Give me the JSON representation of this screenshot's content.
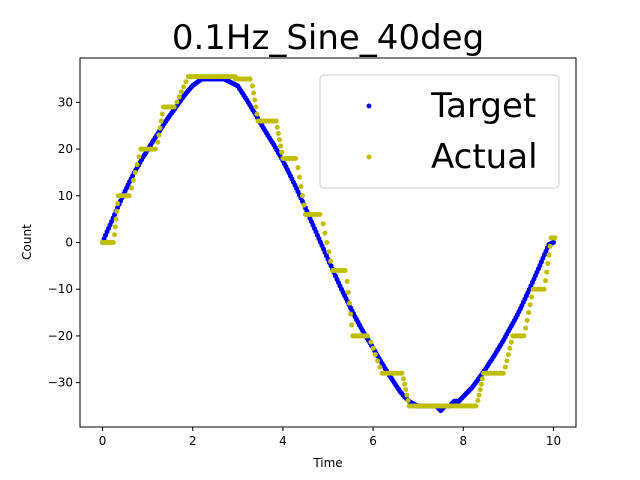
{
  "chart_data": {
    "type": "scatter",
    "title": "0.1Hz_Sine_40deg",
    "xlabel": "Time",
    "ylabel": "Count",
    "xlim": [
      -0.5,
      10.5
    ],
    "ylim": [
      -39.5,
      39.5
    ],
    "xticks": [
      0,
      2,
      4,
      6,
      8,
      10
    ],
    "xtick_labels": [
      "0",
      "2",
      "4",
      "6",
      "8",
      "10"
    ],
    "yticks": [
      -30,
      -20,
      -10,
      0,
      10,
      20,
      30
    ],
    "ytick_labels": [
      "−30",
      "−20",
      "−10",
      "0",
      "10",
      "20",
      "30"
    ],
    "grid": false,
    "legend_position": "top-right",
    "series": [
      {
        "name": "Target",
        "color": "#0000ff",
        "x": [
          0.0,
          0.1,
          0.2,
          0.3,
          0.4,
          0.5,
          0.6,
          0.7,
          0.8,
          0.9,
          1.0,
          1.1,
          1.2,
          1.3,
          1.4,
          1.5,
          1.6,
          1.7,
          1.8,
          1.9,
          2.0,
          2.1,
          2.2,
          2.3,
          2.4,
          2.5,
          2.6,
          2.7,
          2.8,
          2.9,
          3.0,
          3.1,
          3.2,
          3.3,
          3.4,
          3.5,
          3.6,
          3.7,
          3.8,
          3.9,
          4.0,
          4.1,
          4.2,
          4.3,
          4.4,
          4.5,
          4.6,
          4.7,
          4.8,
          4.9,
          5.0,
          5.1,
          5.2,
          5.3,
          5.4,
          5.5,
          5.6,
          5.7,
          5.8,
          5.9,
          6.0,
          6.1,
          6.2,
          6.3,
          6.4,
          6.5,
          6.6,
          6.7,
          6.8,
          6.9,
          7.0,
          7.1,
          7.2,
          7.3,
          7.4,
          7.5,
          7.6,
          7.7,
          7.8,
          7.9,
          8.0,
          8.1,
          8.2,
          8.3,
          8.4,
          8.5,
          8.6,
          8.7,
          8.8,
          8.9,
          9.0,
          9.1,
          9.2,
          9.3,
          9.4,
          9.5,
          9.6,
          9.7,
          9.8,
          9.9,
          10.0
        ],
        "y": [
          0.0,
          2.3,
          4.5,
          6.7,
          8.9,
          11.0,
          13.0,
          14.9,
          16.6,
          18.3,
          19.8,
          21.4,
          22.9,
          24.4,
          25.9,
          27.3,
          28.6,
          30.0,
          31.3,
          32.5,
          33.6,
          34.3,
          35.0,
          35.0,
          35.0,
          35.0,
          35.0,
          35.0,
          34.5,
          34.0,
          33.5,
          32.0,
          30.5,
          28.9,
          27.3,
          25.6,
          24.0,
          22.4,
          20.9,
          19.2,
          17.5,
          15.6,
          13.6,
          11.6,
          9.5,
          7.4,
          5.2,
          3.0,
          0.8,
          -1.4,
          -3.6,
          -5.7,
          -7.9,
          -10.0,
          -12.0,
          -14.0,
          -15.9,
          -17.7,
          -19.4,
          -21.0,
          -22.6,
          -24.3,
          -25.9,
          -27.5,
          -29.0,
          -30.5,
          -31.9,
          -33.1,
          -34.0,
          -34.6,
          -35.0,
          -35.0,
          -35.0,
          -35.0,
          -35.0,
          -36.0,
          -35.0,
          -35.0,
          -34.0,
          -34.0,
          -33.0,
          -32.0,
          -31.0,
          -29.7,
          -28.4,
          -27.0,
          -25.5,
          -24.0,
          -22.4,
          -20.8,
          -19.0,
          -17.3,
          -15.5,
          -13.5,
          -11.4,
          -9.3,
          -7.1,
          -4.9,
          -2.6,
          -0.4,
          0.0
        ]
      },
      {
        "name": "Actual",
        "color": "#bfbf00",
        "steps": [
          [
            0.0,
            0.25,
            0
          ],
          [
            0.35,
            0.6,
            10
          ],
          [
            0.85,
            1.2,
            20
          ],
          [
            1.35,
            1.6,
            29
          ],
          [
            1.9,
            2.95,
            35.5
          ],
          [
            2.95,
            3.3,
            35
          ],
          [
            3.45,
            3.85,
            26
          ],
          [
            4.0,
            4.3,
            18
          ],
          [
            4.5,
            4.85,
            6
          ],
          [
            5.1,
            5.4,
            -6
          ],
          [
            5.55,
            5.9,
            -20
          ],
          [
            6.2,
            6.65,
            -28
          ],
          [
            6.8,
            8.3,
            -35
          ],
          [
            8.45,
            8.9,
            -28
          ],
          [
            9.1,
            9.35,
            -20
          ],
          [
            9.55,
            9.8,
            -10
          ],
          [
            9.95,
            10.05,
            1
          ]
        ]
      }
    ]
  }
}
